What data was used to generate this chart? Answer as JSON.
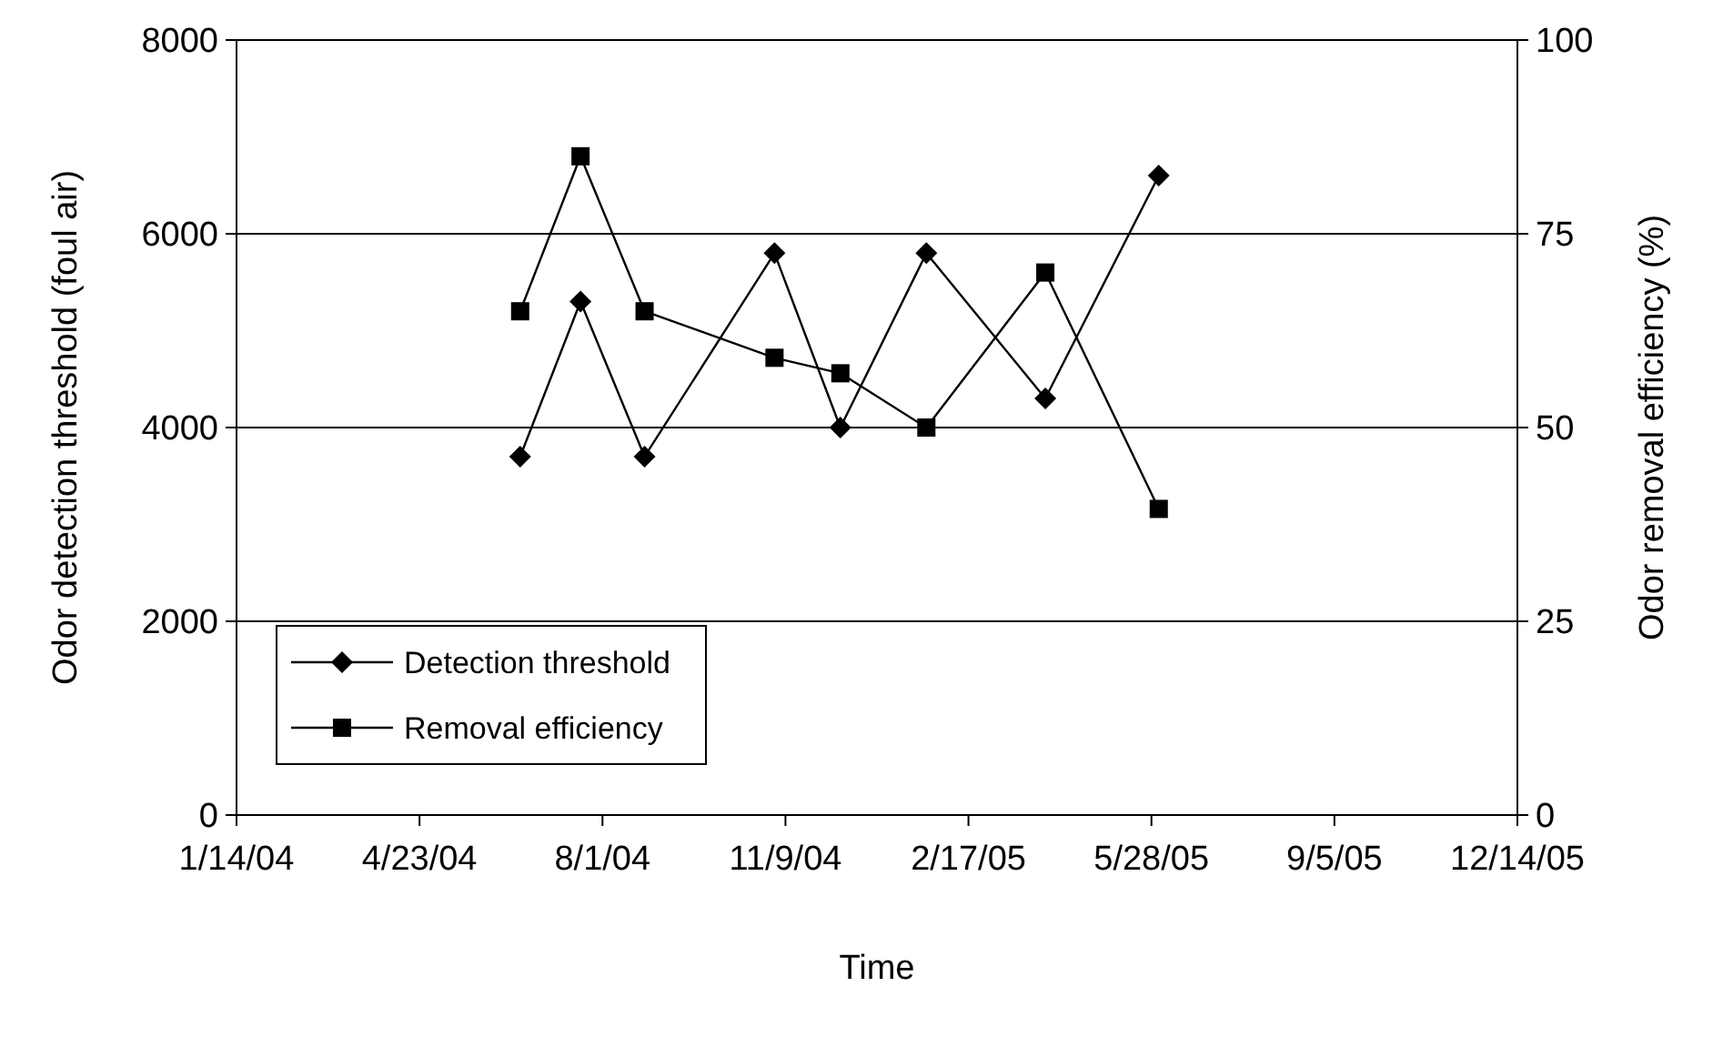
{
  "chart_data": {
    "type": "line",
    "xlabel": "Time",
    "ylabel": "Odor detection threshold (foul air)",
    "y2label": "Odor removal efficiency (%)",
    "x": [
      "2004-06-17",
      "2004-07-20",
      "2004-08-24",
      "2004-11-03",
      "2004-12-09",
      "2005-01-25",
      "2005-03-31",
      "2005-06-01"
    ],
    "series": [
      {
        "name": "Detection threshold",
        "color": "#000000",
        "marker": "diamond",
        "values": [
          3700,
          5300,
          3700,
          5800,
          4000,
          5800,
          4300,
          6600
        ]
      },
      {
        "name": "Removal efficiency",
        "color": "#000000",
        "marker": "square",
        "axis": "y2",
        "values": [
          65,
          85,
          65,
          59,
          57,
          50,
          70,
          39.5
        ]
      }
    ],
    "xlim": [
      "2004-01-14",
      "2005-12-14"
    ],
    "xticks": [
      {
        "value": "2004-01-14",
        "label": "1/14/04"
      },
      {
        "value": "2004-04-23",
        "label": "4/23/04"
      },
      {
        "value": "2004-08-01",
        "label": "8/1/04"
      },
      {
        "value": "2004-11-09",
        "label": "11/9/04"
      },
      {
        "value": "2005-02-17",
        "label": "2/17/05"
      },
      {
        "value": "2005-05-28",
        "label": "5/28/05"
      },
      {
        "value": "2005-09-05",
        "label": "9/5/05"
      },
      {
        "value": "2005-12-14",
        "label": "12/14/05"
      }
    ],
    "ylim": [
      0,
      8000
    ],
    "yticks": [
      0,
      2000,
      4000,
      6000,
      8000
    ],
    "y2lim": [
      0,
      100
    ],
    "y2ticks": [
      0,
      25,
      50,
      75,
      100
    ],
    "grid": "y",
    "legend": "bottom left",
    "line_style": "solid"
  }
}
